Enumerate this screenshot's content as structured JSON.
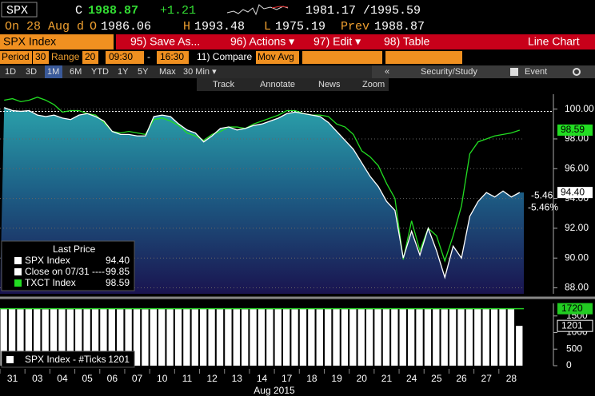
{
  "header": {
    "ticker": "SPX",
    "c_label": "C",
    "last": "1988.87",
    "change": "+1.21",
    "range": "1981.17 /1995.59",
    "date_line": "On 28 Aug d",
    "open_label": "O",
    "open": "1986.06",
    "high_label": "H",
    "high": "1993.48",
    "low_label": "L",
    "low": "1975.19",
    "prev_label": "Prev",
    "prev": "1988.87"
  },
  "menu": {
    "security": "SPX Index",
    "buttons": [
      "95) Save As...",
      "96) Actions ▾",
      "97) Edit ▾",
      "98) Table"
    ],
    "view": "Line Chart"
  },
  "settings": {
    "period_label": "Period",
    "period": "30",
    "range_label": "Range",
    "range": "20",
    "start": "09:30",
    "dash": "-",
    "end": "16:30",
    "compare": "11) Compare",
    "mov_avg": "Mov Avg"
  },
  "timeframes": [
    "1D",
    "3D",
    "1M",
    "6M",
    "YTD",
    "1Y",
    "5Y",
    "Max",
    "30 Min ▾"
  ],
  "panel": [
    "«",
    "Security/Study",
    "Event"
  ],
  "tools": [
    "Track",
    "Annotate",
    "News",
    "Zoom"
  ],
  "chart_data": [
    {
      "type": "line",
      "ylim": [
        87.6,
        101
      ],
      "yticks": [
        {
          "value": 88,
          "label": "88.00"
        },
        {
          "value": 90,
          "label": "90.00"
        },
        {
          "value": 92,
          "label": "92.00"
        },
        {
          "value": 94,
          "label": "94.00"
        },
        {
          "value": 96,
          "label": "96.00"
        },
        {
          "value": 98,
          "label": "98.00"
        },
        {
          "value": 100,
          "label": "100.00"
        }
      ],
      "grid": true,
      "legend_title": "Last Price",
      "series": [
        {
          "name": "SPX Index",
          "color": "#ffffff",
          "last_label": "94.40",
          "values": [
            100.1,
            99.9,
            99.85,
            99.9,
            99.6,
            99.5,
            99.6,
            99.4,
            99.3,
            99.6,
            99.7,
            99.5,
            99.2,
            98.5,
            98.3,
            98.3,
            98.2,
            98.2,
            99.5,
            99.6,
            99.5,
            99.0,
            98.6,
            98.4,
            97.8,
            98.2,
            98.7,
            98.8,
            98.6,
            98.7,
            98.9,
            99.0,
            99.2,
            99.4,
            99.7,
            99.8,
            99.7,
            99.6,
            99.5,
            99.1,
            98.5,
            97.9,
            97.3,
            96.4,
            95.5,
            94.8,
            93.8,
            93.2,
            90.0,
            91.8,
            90.2,
            92.0,
            90.5,
            88.7,
            90.8,
            90.0,
            92.8,
            93.8,
            94.4,
            94.1,
            94.5,
            94.1,
            94.4
          ]
        },
        {
          "name": "TXCT Index",
          "color": "#22dd22",
          "last_label": "98.59",
          "values": [
            100.6,
            100.7,
            100.5,
            100.6,
            100.8,
            100.6,
            100.3,
            99.8,
            99.9,
            99.9,
            99.7,
            99.6,
            99.1,
            98.5,
            98.4,
            98.5,
            98.4,
            98.3,
            99.3,
            99.4,
            99.2,
            98.9,
            98.4,
            98.2,
            97.9,
            98.3,
            98.5,
            98.8,
            98.8,
            98.7,
            99.0,
            99.2,
            99.4,
            99.6,
            99.9,
            99.9,
            99.7,
            99.6,
            99.6,
            99.5,
            99.0,
            98.8,
            98.3,
            97.2,
            96.8,
            96.2,
            95.0,
            94.0,
            89.9,
            92.5,
            90.5,
            92.0,
            91.5,
            89.8,
            91.5,
            93.5,
            97.0,
            97.8,
            98.0,
            98.2,
            98.3,
            98.4,
            98.59
          ]
        }
      ],
      "reference": {
        "name": "Close on 07/31 ----",
        "value": 99.85,
        "label": "99.85"
      },
      "annotations": [
        "-5.46",
        "-5.46%"
      ]
    },
    {
      "type": "bar",
      "legend": "SPX Index - #Ticks",
      "color": "#ffffff",
      "ylim": [
        0,
        1880
      ],
      "yticks": [
        0,
        500,
        1000,
        1500
      ],
      "reference": {
        "value": 1720,
        "color": "#22cc22"
      },
      "categories": [
        null,
        "31",
        null,
        null,
        "03",
        null,
        null,
        "04",
        null,
        null,
        "05",
        null,
        null,
        "06",
        null,
        null,
        "07",
        null,
        null,
        "10",
        null,
        null,
        "11",
        null,
        null,
        "12",
        null,
        null,
        "13",
        null,
        null,
        "14",
        null,
        null,
        "17",
        null,
        null,
        "18",
        null,
        null,
        "19",
        null,
        null,
        "20",
        null,
        null,
        "21",
        null,
        null,
        "24",
        null,
        null,
        "25",
        null,
        null,
        "26",
        null,
        null,
        "27",
        null,
        null,
        "28",
        null
      ],
      "x_label": "Aug 2015",
      "values": [
        1710,
        1715,
        1705,
        1712,
        1718,
        1700,
        1716,
        1709,
        1702,
        1714,
        1711,
        1706,
        1717,
        1713,
        1704,
        1710,
        1708,
        1701,
        1715,
        1712,
        1707,
        1716,
        1710,
        1703,
        1714,
        1711,
        1705,
        1718,
        1709,
        1702,
        1713,
        1716,
        1706,
        1712,
        1710,
        1704,
        1717,
        1711,
        1703,
        1715,
        1713,
        1708,
        1716,
        1710,
        1705,
        1718,
        1714,
        1709,
        1717,
        1712,
        1706,
        1715,
        1711,
        1704,
        1716,
        1713,
        1707,
        1714,
        1710,
        1702,
        1712,
        1708,
        1201
      ]
    }
  ]
}
